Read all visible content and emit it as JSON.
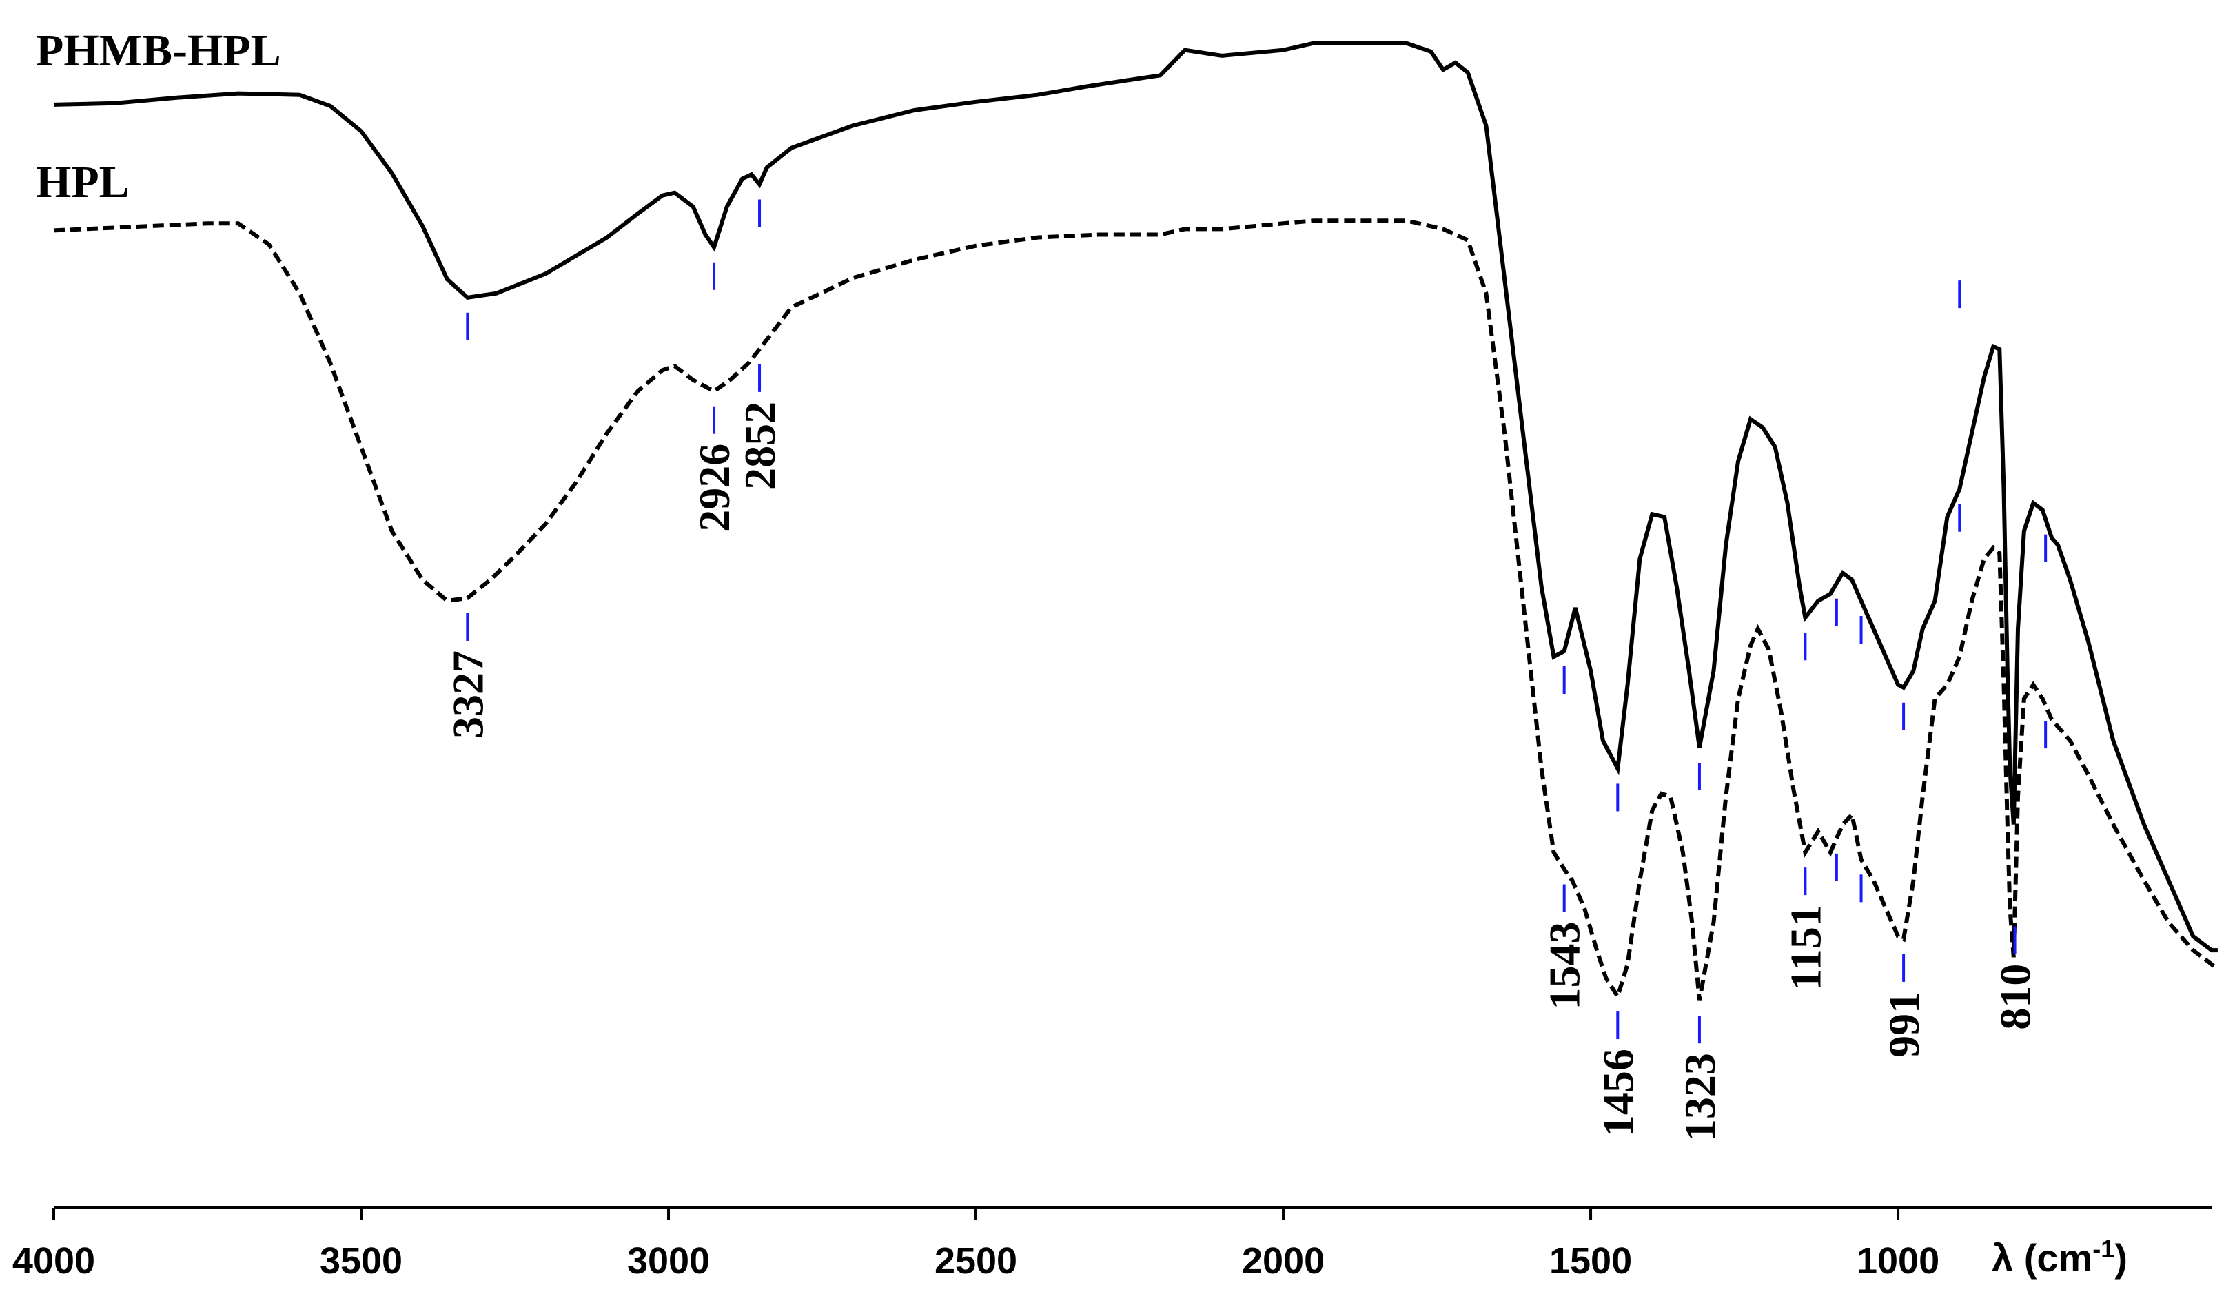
{
  "chart_data": {
    "type": "line",
    "title": "",
    "xlabel": "λ (cm",
    "xlabel_sup": "-1",
    "xlabel_close": ")",
    "ylabel": "",
    "xlim": [
      4000,
      0
    ],
    "x_ticks": [
      4000,
      3500,
      3000,
      2500,
      2000,
      1500,
      1000
    ],
    "x_tick_labels": [
      "4000",
      "3500",
      "3000",
      "2500",
      "2000",
      "1500",
      "1000"
    ],
    "grid": false,
    "legend": "none",
    "marker_color": "#1a1aff",
    "series": [
      {
        "name": "PHMB-HPL",
        "style": "solid",
        "points": [
          [
            4000,
            65
          ],
          [
            3900,
            64
          ],
          [
            3800,
            60
          ],
          [
            3700,
            57
          ],
          [
            3600,
            58
          ],
          [
            3550,
            66
          ],
          [
            3500,
            84
          ],
          [
            3450,
            114
          ],
          [
            3400,
            152
          ],
          [
            3360,
            190
          ],
          [
            3327,
            203
          ],
          [
            3280,
            200
          ],
          [
            3200,
            186
          ],
          [
            3100,
            160
          ],
          [
            3050,
            143
          ],
          [
            3010,
            130
          ],
          [
            2990,
            128
          ],
          [
            2960,
            138
          ],
          [
            2940,
            158
          ],
          [
            2926,
            167
          ],
          [
            2905,
            138
          ],
          [
            2880,
            118
          ],
          [
            2865,
            115
          ],
          [
            2852,
            122
          ],
          [
            2840,
            110
          ],
          [
            2800,
            96
          ],
          [
            2700,
            80
          ],
          [
            2600,
            69
          ],
          [
            2500,
            63
          ],
          [
            2400,
            58
          ],
          [
            2320,
            52
          ],
          [
            2200,
            44
          ],
          [
            2160,
            26
          ],
          [
            2100,
            30
          ],
          [
            2000,
            26
          ],
          [
            1950,
            21
          ],
          [
            1800,
            21
          ],
          [
            1760,
            27
          ],
          [
            1740,
            40
          ],
          [
            1720,
            35
          ],
          [
            1700,
            42
          ],
          [
            1670,
            80
          ],
          [
            1640,
            190
          ],
          [
            1610,
            300
          ],
          [
            1580,
            410
          ],
          [
            1560,
            460
          ],
          [
            1543,
            456
          ],
          [
            1525,
            425
          ],
          [
            1500,
            470
          ],
          [
            1480,
            520
          ],
          [
            1456,
            540
          ],
          [
            1440,
            480
          ],
          [
            1420,
            390
          ],
          [
            1400,
            358
          ],
          [
            1380,
            360
          ],
          [
            1360,
            410
          ],
          [
            1340,
            470
          ],
          [
            1323,
            525
          ],
          [
            1300,
            470
          ],
          [
            1280,
            380
          ],
          [
            1260,
            320
          ],
          [
            1240,
            290
          ],
          [
            1220,
            296
          ],
          [
            1200,
            310
          ],
          [
            1180,
            350
          ],
          [
            1160,
            410
          ],
          [
            1151,
            432
          ],
          [
            1130,
            420
          ],
          [
            1110,
            415
          ],
          [
            1090,
            400
          ],
          [
            1075,
            405
          ],
          [
            1060,
            420
          ],
          [
            1040,
            440
          ],
          [
            1020,
            460
          ],
          [
            1000,
            480
          ],
          [
            991,
            482
          ],
          [
            975,
            470
          ],
          [
            960,
            440
          ],
          [
            940,
            420
          ],
          [
            920,
            360
          ],
          [
            900,
            340
          ],
          [
            880,
            300
          ],
          [
            860,
            260
          ],
          [
            845,
            238
          ],
          [
            835,
            240
          ],
          [
            828,
            340
          ],
          [
            822,
            470
          ],
          [
            818,
            540
          ],
          [
            812,
            580
          ],
          [
            805,
            440
          ],
          [
            795,
            370
          ],
          [
            780,
            350
          ],
          [
            765,
            355
          ],
          [
            750,
            375
          ],
          [
            740,
            380
          ],
          [
            720,
            405
          ],
          [
            690,
            450
          ],
          [
            650,
            520
          ],
          [
            600,
            580
          ],
          [
            560,
            620
          ],
          [
            520,
            660
          ],
          [
            490,
            670
          ],
          [
            480,
            670
          ]
        ]
      },
      {
        "name": "HPL",
        "style": "dashed",
        "points": [
          [
            4000,
            155
          ],
          [
            3900,
            153
          ],
          [
            3800,
            151
          ],
          [
            3750,
            150
          ],
          [
            3700,
            150
          ],
          [
            3650,
            165
          ],
          [
            3600,
            200
          ],
          [
            3550,
            250
          ],
          [
            3500,
            310
          ],
          [
            3450,
            370
          ],
          [
            3400,
            405
          ],
          [
            3360,
            420
          ],
          [
            3327,
            418
          ],
          [
            3290,
            405
          ],
          [
            3250,
            388
          ],
          [
            3200,
            365
          ],
          [
            3150,
            335
          ],
          [
            3100,
            300
          ],
          [
            3050,
            270
          ],
          [
            3010,
            255
          ],
          [
            2990,
            252
          ],
          [
            2960,
            262
          ],
          [
            2926,
            270
          ],
          [
            2900,
            262
          ],
          [
            2870,
            250
          ],
          [
            2852,
            240
          ],
          [
            2800,
            210
          ],
          [
            2700,
            189
          ],
          [
            2600,
            176
          ],
          [
            2500,
            166
          ],
          [
            2400,
            160
          ],
          [
            2300,
            158
          ],
          [
            2200,
            158
          ],
          [
            2160,
            154
          ],
          [
            2100,
            154
          ],
          [
            2000,
            150
          ],
          [
            1950,
            148
          ],
          [
            1800,
            148
          ],
          [
            1740,
            154
          ],
          [
            1700,
            162
          ],
          [
            1670,
            200
          ],
          [
            1640,
            300
          ],
          [
            1610,
            420
          ],
          [
            1580,
            540
          ],
          [
            1560,
            600
          ],
          [
            1543,
            612
          ],
          [
            1530,
            620
          ],
          [
            1510,
            640
          ],
          [
            1490,
            670
          ],
          [
            1475,
            690
          ],
          [
            1456,
            703
          ],
          [
            1440,
            680
          ],
          [
            1420,
            620
          ],
          [
            1400,
            570
          ],
          [
            1385,
            558
          ],
          [
            1370,
            560
          ],
          [
            1350,
            600
          ],
          [
            1335,
            650
          ],
          [
            1323,
            706
          ],
          [
            1300,
            650
          ],
          [
            1280,
            560
          ],
          [
            1260,
            490
          ],
          [
            1240,
            452
          ],
          [
            1228,
            440
          ],
          [
            1210,
            455
          ],
          [
            1190,
            500
          ],
          [
            1170,
            555
          ],
          [
            1151,
            600
          ],
          [
            1130,
            585
          ],
          [
            1110,
            600
          ],
          [
            1090,
            580
          ],
          [
            1075,
            573
          ],
          [
            1060,
            605
          ],
          [
            1040,
            620
          ],
          [
            1020,
            640
          ],
          [
            1000,
            660
          ],
          [
            991,
            662
          ],
          [
            975,
            620
          ],
          [
            960,
            560
          ],
          [
            940,
            490
          ],
          [
            920,
            480
          ],
          [
            900,
            460
          ],
          [
            880,
            420
          ],
          [
            860,
            390
          ],
          [
            845,
            382
          ],
          [
            835,
            386
          ],
          [
            828,
            480
          ],
          [
            822,
            580
          ],
          [
            818,
            640
          ],
          [
            812,
            675
          ],
          [
            805,
            560
          ],
          [
            795,
            490
          ],
          [
            780,
            480
          ],
          [
            765,
            490
          ],
          [
            750,
            505
          ],
          [
            740,
            510
          ],
          [
            720,
            520
          ],
          [
            690,
            545
          ],
          [
            650,
            580
          ],
          [
            600,
            620
          ],
          [
            560,
            650
          ],
          [
            520,
            670
          ],
          [
            490,
            680
          ],
          [
            480,
            684
          ]
        ]
      }
    ],
    "peak_markers": [
      {
        "x": 3327,
        "series": "PHMB-HPL"
      },
      {
        "x": 2926,
        "series": "PHMB-HPL"
      },
      {
        "x": 2852,
        "series": "PHMB-HPL"
      },
      {
        "x": 1543,
        "series": "PHMB-HPL"
      },
      {
        "x": 1456,
        "series": "PHMB-HPL"
      },
      {
        "x": 1323,
        "series": "PHMB-HPL"
      },
      {
        "x": 1151,
        "series": "PHMB-HPL"
      },
      {
        "x": 1100,
        "series": "PHMB-HPL"
      },
      {
        "x": 1060,
        "series": "PHMB-HPL"
      },
      {
        "x": 991,
        "series": "PHMB-HPL"
      },
      {
        "x": 900,
        "series": "PHMB-HPL"
      },
      {
        "x": 900,
        "series": "PHMB-HPL-upper"
      },
      {
        "x": 760,
        "series": "PHMB-HPL"
      },
      {
        "x": 760,
        "series": "HPL"
      },
      {
        "x": 3327,
        "series": "HPL"
      },
      {
        "x": 2926,
        "series": "HPL"
      },
      {
        "x": 2852,
        "series": "HPL"
      },
      {
        "x": 1543,
        "series": "HPL"
      },
      {
        "x": 1456,
        "series": "HPL"
      },
      {
        "x": 1323,
        "series": "HPL"
      },
      {
        "x": 1151,
        "series": "HPL"
      },
      {
        "x": 1100,
        "series": "HPL"
      },
      {
        "x": 1060,
        "series": "HPL"
      },
      {
        "x": 991,
        "series": "HPL"
      },
      {
        "x": 810,
        "series": "HPL"
      }
    ],
    "peak_labels": [
      {
        "x": 3327,
        "text": "3327"
      },
      {
        "x": 2926,
        "text": "2926"
      },
      {
        "x": 2852,
        "text": "2852"
      },
      {
        "x": 1543,
        "text": "1543"
      },
      {
        "x": 1456,
        "text": "1456"
      },
      {
        "x": 1323,
        "text": "1323"
      },
      {
        "x": 1151,
        "text": "1151"
      },
      {
        "x": 991,
        "text": "991"
      },
      {
        "x": 810,
        "text": "810"
      }
    ]
  }
}
